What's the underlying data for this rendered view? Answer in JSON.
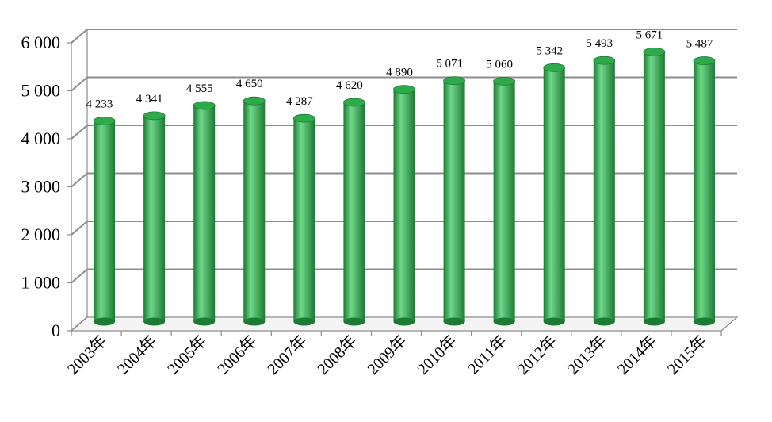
{
  "chart_data": {
    "type": "bar",
    "style": "3d-cylinder",
    "title": "",
    "xlabel": "",
    "ylabel": "",
    "categories": [
      "2003年",
      "2004年",
      "2005年",
      "2006年",
      "2007年",
      "2008年",
      "2009年",
      "2010年",
      "2011年",
      "2012年",
      "2013年",
      "2014年",
      "2015年"
    ],
    "values": [
      4233,
      4341,
      4555,
      4650,
      4287,
      4620,
      4890,
      5071,
      5060,
      5342,
      5493,
      5671,
      5487
    ],
    "data_labels": [
      "4 233",
      "4 341",
      "4 555",
      "4 650",
      "4 287",
      "4 620",
      "4 890",
      "5 071",
      "5 060",
      "5 342",
      "5 493",
      "5 671",
      "5 487"
    ],
    "ylim": [
      0,
      6000
    ],
    "yticks": [
      0,
      1000,
      2000,
      3000,
      4000,
      5000,
      6000
    ],
    "ytick_labels": [
      "0",
      "1 000",
      "2 000",
      "3 000",
      "4 000",
      "5 000",
      "6 000"
    ],
    "grid": true,
    "legend": "none",
    "colors": {
      "bar": "#2eaa4a",
      "bar_dark": "#1c7a33",
      "bar_light": "#6fd88a",
      "grid": "#8c8c8c",
      "axis": "#8c8c8c"
    }
  }
}
